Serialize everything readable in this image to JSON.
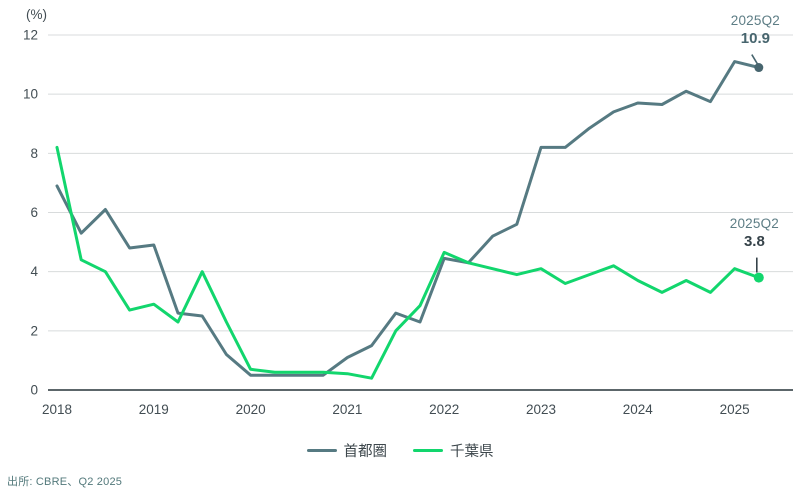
{
  "chart_data": {
    "type": "line",
    "unit_label": "(%)",
    "x_years": [
      "2018",
      "2019",
      "2020",
      "2021",
      "2022",
      "2023",
      "2024",
      "2025"
    ],
    "quarters_per_year": 4,
    "y_ticks": [
      0,
      2,
      4,
      6,
      8,
      10,
      12
    ],
    "ylim": [
      0,
      12
    ],
    "grid": true,
    "legend_position": "bottom-center",
    "x_note": "quarterly data, 2018Q1 through 2025Q2",
    "series": [
      {
        "name": "首都圏",
        "color": "#567a82",
        "values": [
          6.9,
          5.3,
          6.1,
          4.8,
          4.9,
          2.6,
          2.5,
          1.2,
          0.5,
          0.5,
          0.5,
          0.5,
          1.1,
          1.5,
          2.6,
          2.3,
          4.45,
          4.3,
          5.2,
          5.6,
          8.2,
          8.2,
          8.85,
          9.4,
          9.7,
          9.65,
          10.1,
          9.75,
          11.1,
          10.9
        ]
      },
      {
        "name": "千葉県",
        "color": "#12d66d",
        "values": [
          8.2,
          4.4,
          4.0,
          2.7,
          2.9,
          2.3,
          4.0,
          2.3,
          0.7,
          0.6,
          0.6,
          0.6,
          0.55,
          0.4,
          2.0,
          2.85,
          4.65,
          4.3,
          4.1,
          3.9,
          4.1,
          3.6,
          3.9,
          4.2,
          3.7,
          3.3,
          3.7,
          3.3,
          4.1,
          3.8
        ]
      }
    ],
    "annotations": [
      {
        "series": "首都圏",
        "label": "2025Q2",
        "value_label": "10.9"
      },
      {
        "series": "千葉県",
        "label": "2025Q2",
        "value_label": "3.8"
      }
    ]
  },
  "legend": {
    "items": [
      {
        "label": "首都圏",
        "color": "#567a82"
      },
      {
        "label": "千葉県",
        "color": "#12d66d"
      }
    ]
  },
  "source": {
    "text": "出所: CBRE、Q2 2025"
  },
  "colors": {
    "background": "#ffffff",
    "gridline": "#d8dbdc",
    "zero_axis": "#5c666a",
    "tick_text": "#424d53",
    "annotation_label": "#5d7d85",
    "annotation_value_dark": "#47656e",
    "annotation_value_darker": "#36434a",
    "source_text": "#53797b"
  }
}
